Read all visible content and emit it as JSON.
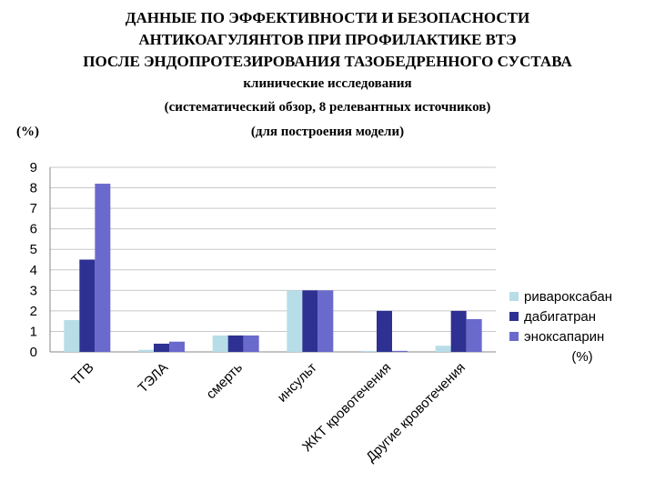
{
  "header": {
    "line1": "ДАННЫЕ ПО ЭФФЕКТИВНОСТИ И БЕЗОПАСНОСТИ",
    "line2": "АНТИКОАГУЛЯНТОВ ПРИ ПРОФИЛАКТИКЕ ВТЭ",
    "line3": "ПОСЛЕ ЭНДОПРОТЕЗИРОВАНИЯ ТАЗОБЕДРЕННОГО СУСТАВА",
    "line4": "клинические исследования",
    "line5": "(систематический обзор, 8 релевантных источников)",
    "line6": "(для построения модели)",
    "unit_left": "(%)"
  },
  "chart_data": {
    "type": "bar",
    "categories": [
      "ТГВ",
      "ТЭЛА",
      "смерть",
      "инсульт",
      "ЖКТ кровотечения",
      "Другие кровотечения"
    ],
    "series": [
      {
        "name": "ривароксабан",
        "color": "#b7dde8",
        "values": [
          1.55,
          0.1,
          0.8,
          3.0,
          0.05,
          0.3
        ]
      },
      {
        "name": "дабигатран",
        "color": "#2e3192",
        "values": [
          4.5,
          0.4,
          0.8,
          3.0,
          2.0,
          2.0
        ]
      },
      {
        "name": "эноксапарин",
        "color": "#6a6acd",
        "values": [
          8.2,
          0.5,
          0.8,
          3.0,
          0.05,
          1.6
        ]
      }
    ],
    "yticks": [
      "0",
      "1",
      "2",
      "3",
      "4",
      "5",
      "6",
      "7",
      "8",
      "9"
    ],
    "ylim": [
      0,
      9
    ],
    "grid": true,
    "legend_position": "right",
    "legend_unit": "(%)"
  }
}
